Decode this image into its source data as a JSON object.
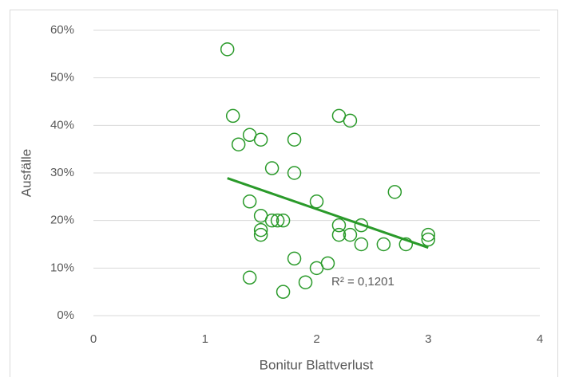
{
  "chart_data": {
    "type": "scatter",
    "xlabel": "Bonitur Blattverlust",
    "ylabel": "Ausfälle",
    "series": [
      {
        "color": "#2a9a2a",
        "x": [
          1.2,
          1.25,
          1.3,
          1.4,
          1.5,
          1.6,
          1.8,
          1.8,
          1.4,
          1.5,
          1.6,
          1.65,
          1.7,
          1.5,
          1.5,
          1.4,
          1.8,
          1.7,
          1.9,
          2.0,
          2.1,
          2.0,
          2.2,
          2.3,
          2.2,
          2.2,
          2.3,
          2.4,
          2.4,
          2.6,
          2.7,
          2.8,
          3.0,
          3.0
        ],
        "values": [
          56,
          42,
          36,
          38,
          37,
          31,
          37,
          30,
          24,
          21,
          20,
          20,
          20,
          18,
          17,
          8,
          12,
          5,
          7,
          10,
          11,
          24,
          42,
          41,
          19,
          17,
          17,
          19,
          15,
          15,
          26,
          15,
          17,
          16
        ]
      }
    ],
    "trendline": {
      "x": [
        1.2,
        3.0
      ],
      "values": [
        28.9,
        14.3
      ],
      "label": "R² = 0,1201"
    },
    "xlim": [
      0,
      4
    ],
    "xticks": [
      0,
      1,
      2,
      3,
      4
    ],
    "ylim": [
      0,
      60
    ],
    "yticks": [
      {
        "value": 0,
        "label": "0%"
      },
      {
        "value": 10,
        "label": "10%"
      },
      {
        "value": 20,
        "label": "20%"
      },
      {
        "value": 30,
        "label": "30%"
      },
      {
        "value": 40,
        "label": "40%"
      },
      {
        "value": 50,
        "label": "50%"
      },
      {
        "value": 60,
        "label": "60%"
      }
    ],
    "grid": true
  }
}
